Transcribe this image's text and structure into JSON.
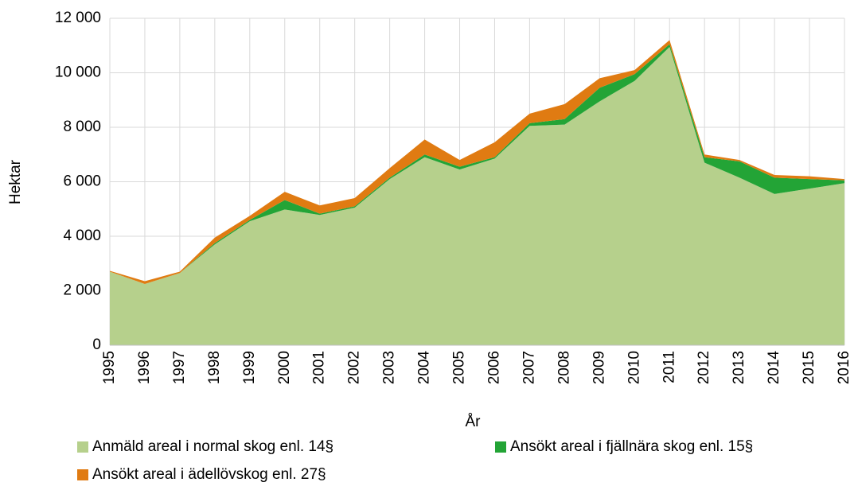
{
  "chart_data": {
    "type": "stacked_area",
    "x_label": "År",
    "y_label": "Hektar",
    "categories": [
      "1995",
      "1996",
      "1997",
      "1998",
      "1999",
      "2000",
      "2001",
      "2002",
      "2003",
      "2004",
      "2005",
      "2006",
      "2007",
      "2008",
      "2009",
      "2010",
      "2011",
      "2012",
      "2013",
      "2014",
      "2015",
      "2016"
    ],
    "series": [
      {
        "name": "Anmäld areal i normal skog enl. 14§",
        "color": "#b6d08c",
        "values": [
          2700,
          2250,
          2650,
          3700,
          4550,
          4980,
          4780,
          5050,
          6100,
          6900,
          6450,
          6850,
          8050,
          8100,
          8950,
          9700,
          10950,
          6700,
          6150,
          5550,
          5750,
          5950
        ]
      },
      {
        "name": "Ansökt areal i fjällnära skog enl. 15§",
        "color": "#23a436",
        "values": [
          0,
          0,
          0,
          50,
          50,
          350,
          50,
          50,
          50,
          100,
          100,
          50,
          100,
          200,
          500,
          250,
          100,
          200,
          600,
          600,
          350,
          100
        ]
      },
      {
        "name": "Ansökt areal i ädellövskog enl. 27§",
        "color": "#e07b12",
        "values": [
          30,
          100,
          50,
          200,
          150,
          300,
          300,
          300,
          350,
          550,
          250,
          550,
          350,
          550,
          350,
          150,
          150,
          100,
          50,
          100,
          100,
          50
        ]
      }
    ],
    "ylim": [
      0,
      12000
    ],
    "yticks": [
      0,
      {
        "value": 2000,
        "label": "2 000"
      },
      {
        "value": 4000,
        "label": "4 000"
      },
      {
        "value": 6000,
        "label": "6 000"
      },
      {
        "value": 8000,
        "label": "8 000"
      },
      {
        "value": 10000,
        "label": "10 000"
      },
      {
        "value": 12000,
        "label": "12 000"
      }
    ],
    "grid": true
  }
}
